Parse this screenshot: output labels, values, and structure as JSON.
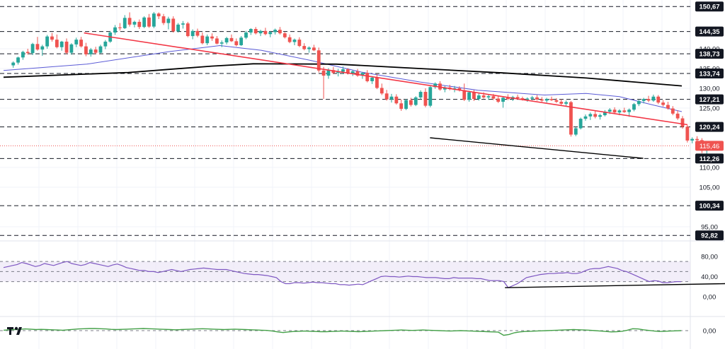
{
  "chart_data": {
    "type": "candlestick",
    "title": "",
    "xlabel": "",
    "ylabel": "",
    "ylim": [
      87,
      154
    ],
    "price_ticks": [
      "140,00",
      "135,00",
      "130,00",
      "125,00",
      "110,00",
      "105,00",
      "95,00"
    ],
    "key_levels": [
      {
        "label": "150,67",
        "value": 150.67
      },
      {
        "label": "144,35",
        "value": 144.35
      },
      {
        "label": "138,73",
        "value": 138.73
      },
      {
        "label": "133,74",
        "value": 133.74
      },
      {
        "label": "127,21",
        "value": 127.21
      },
      {
        "label": "120,24",
        "value": 120.24
      },
      {
        "label": "112,26",
        "value": 112.26
      },
      {
        "label": "100,34",
        "value": 100.34
      },
      {
        "label": "92,82",
        "value": 92.82
      }
    ],
    "last_price": {
      "label": "115,46",
      "value": 115.46
    },
    "colors": {
      "up": "#26a69a",
      "down": "#ef5350",
      "trend": "#f23645",
      "ma_short": "#5b5bd6",
      "ma_long": "#000000",
      "rsi": "#7e57c2",
      "macd": "#43a047",
      "rsi_band": "#ede7f6"
    },
    "n_bars": 170,
    "candles": [
      [
        135.8,
        136.8,
        135.2,
        136.5
      ],
      [
        136.5,
        138.0,
        136.0,
        137.8
      ],
      [
        137.8,
        139.5,
        137.2,
        139.2
      ],
      [
        139.2,
        140.0,
        138.5,
        138.9
      ],
      [
        138.9,
        141.5,
        138.4,
        141.2
      ],
      [
        141.2,
        143.0,
        139.5,
        139.8
      ],
      [
        139.8,
        141.0,
        138.2,
        140.6
      ],
      [
        140.6,
        143.5,
        140.0,
        143.1
      ],
      [
        143.1,
        144.0,
        141.8,
        142.3
      ],
      [
        142.3,
        143.6,
        140.1,
        140.4
      ],
      [
        140.4,
        142.0,
        139.5,
        141.8
      ],
      [
        141.8,
        142.6,
        138.6,
        139.0
      ],
      [
        139.0,
        141.4,
        138.5,
        141.1
      ],
      [
        141.1,
        142.8,
        140.4,
        142.3
      ],
      [
        142.3,
        143.0,
        140.3,
        140.6
      ],
      [
        140.6,
        141.5,
        138.1,
        138.6
      ],
      [
        138.6,
        140.2,
        138.0,
        139.8
      ],
      [
        139.8,
        140.5,
        138.6,
        139.0
      ],
      [
        139.0,
        141.0,
        138.8,
        140.6
      ],
      [
        140.6,
        142.2,
        139.9,
        141.8
      ],
      [
        141.8,
        144.5,
        141.5,
        144.1
      ],
      [
        144.1,
        146.0,
        143.5,
        145.4
      ],
      [
        145.4,
        146.5,
        144.6,
        145.2
      ],
      [
        145.2,
        148.5,
        145.0,
        147.8
      ],
      [
        147.8,
        149.2,
        145.6,
        146.1
      ],
      [
        146.1,
        147.1,
        145.4,
        146.8
      ],
      [
        146.8,
        147.4,
        145.0,
        145.5
      ],
      [
        145.5,
        148.2,
        145.2,
        147.9
      ],
      [
        147.9,
        148.8,
        145.3,
        145.6
      ],
      [
        145.6,
        149.3,
        145.2,
        148.9
      ],
      [
        148.9,
        149.2,
        147.5,
        148.2
      ],
      [
        148.2,
        148.8,
        146.0,
        146.5
      ],
      [
        146.5,
        148.1,
        144.9,
        147.6
      ],
      [
        147.6,
        148.2,
        144.1,
        144.4
      ],
      [
        144.4,
        146.5,
        144.1,
        146.1
      ],
      [
        146.1,
        147.0,
        145.1,
        146.4
      ],
      [
        146.4,
        146.8,
        142.9,
        143.2
      ],
      [
        143.2,
        144.9,
        142.4,
        144.5
      ],
      [
        144.5,
        145.1,
        142.9,
        143.3
      ],
      [
        143.3,
        144.1,
        141.1,
        141.4
      ],
      [
        141.4,
        143.6,
        140.9,
        143.1
      ],
      [
        143.1,
        143.9,
        142.0,
        142.6
      ],
      [
        142.6,
        143.2,
        141.1,
        141.3
      ],
      [
        141.3,
        142.1,
        140.4,
        141.6
      ],
      [
        141.6,
        143.0,
        141.1,
        142.7
      ],
      [
        142.7,
        143.6,
        141.7,
        141.9
      ],
      [
        141.9,
        142.6,
        140.6,
        140.9
      ],
      [
        140.9,
        143.2,
        140.7,
        142.8
      ],
      [
        142.8,
        144.5,
        142.4,
        144.1
      ],
      [
        144.1,
        145.2,
        143.5,
        145.0
      ],
      [
        145.0,
        145.5,
        143.6,
        143.9
      ],
      [
        143.9,
        144.8,
        143.2,
        144.5
      ],
      [
        144.5,
        145.3,
        143.4,
        143.7
      ],
      [
        143.7,
        144.5,
        142.9,
        144.2
      ],
      [
        144.2,
        145.1,
        143.6,
        144.8
      ],
      [
        144.8,
        145.5,
        143.6,
        143.9
      ],
      [
        143.9,
        144.2,
        142.6,
        142.9
      ],
      [
        142.9,
        143.6,
        141.4,
        141.7
      ],
      [
        141.7,
        142.6,
        140.9,
        142.3
      ],
      [
        142.3,
        142.9,
        140.4,
        140.7
      ],
      [
        140.7,
        141.4,
        139.6,
        139.9
      ],
      [
        139.9,
        140.6,
        139.0,
        140.3
      ],
      [
        140.3,
        141.0,
        139.4,
        139.6
      ],
      [
        139.6,
        140.3,
        134.0,
        134.5
      ],
      [
        134.5,
        135.4,
        127.3,
        133.2
      ],
      [
        133.2,
        135.1,
        132.4,
        134.6
      ],
      [
        134.6,
        135.4,
        133.6,
        133.9
      ],
      [
        133.9,
        134.9,
        133.0,
        134.2
      ],
      [
        134.2,
        135.5,
        133.6,
        134.8
      ],
      [
        134.8,
        135.1,
        133.5,
        133.8
      ],
      [
        133.8,
        134.6,
        133.1,
        134.3
      ],
      [
        134.3,
        134.9,
        132.9,
        133.2
      ],
      [
        133.2,
        134.1,
        132.4,
        133.9
      ],
      [
        133.9,
        134.6,
        131.5,
        131.8
      ],
      [
        131.8,
        133.1,
        131.1,
        132.7
      ],
      [
        132.7,
        133.6,
        129.8,
        130.1
      ],
      [
        130.1,
        131.2,
        128.3,
        128.7
      ],
      [
        128.7,
        129.6,
        126.9,
        127.2
      ],
      [
        127.2,
        128.6,
        126.4,
        127.9
      ],
      [
        127.9,
        128.5,
        125.9,
        126.2
      ],
      [
        126.2,
        127.2,
        124.3,
        124.8
      ],
      [
        124.8,
        127.3,
        124.5,
        127.0
      ],
      [
        127.0,
        127.6,
        125.4,
        125.8
      ],
      [
        125.8,
        128.0,
        125.5,
        127.7
      ],
      [
        127.7,
        129.5,
        127.2,
        129.1
      ],
      [
        129.1,
        130.0,
        125.2,
        125.6
      ],
      [
        125.6,
        130.8,
        125.2,
        130.3
      ],
      [
        130.3,
        131.5,
        129.9,
        131.2
      ],
      [
        131.2,
        131.8,
        129.4,
        129.7
      ],
      [
        129.7,
        130.6,
        129.0,
        130.2
      ],
      [
        130.2,
        130.9,
        129.5,
        129.8
      ],
      [
        129.8,
        130.6,
        129.0,
        130.0
      ],
      [
        130.0,
        130.5,
        129.2,
        129.5
      ],
      [
        129.5,
        131.2,
        126.8,
        127.1
      ],
      [
        127.1,
        129.4,
        126.6,
        129.0
      ],
      [
        129.0,
        129.6,
        126.8,
        127.3
      ],
      [
        127.3,
        128.7,
        126.9,
        128.2
      ],
      [
        128.2,
        129.0,
        127.4,
        127.7
      ],
      [
        127.7,
        128.4,
        127.1,
        128.0
      ],
      [
        128.0,
        128.6,
        127.0,
        127.4
      ],
      [
        127.4,
        128.1,
        126.3,
        126.6
      ],
      [
        126.6,
        127.9,
        125.1,
        127.6
      ],
      [
        127.6,
        128.5,
        127.0,
        127.3
      ],
      [
        127.3,
        128.1,
        126.8,
        127.8
      ],
      [
        127.8,
        128.4,
        127.2,
        127.5
      ],
      [
        127.5,
        127.9,
        126.9,
        127.1
      ],
      [
        127.1,
        127.7,
        126.6,
        127.4
      ],
      [
        127.4,
        128.1,
        127.0,
        127.7
      ],
      [
        127.7,
        128.3,
        126.9,
        127.2
      ],
      [
        127.2,
        127.8,
        126.6,
        126.9
      ],
      [
        126.9,
        127.6,
        126.4,
        127.3
      ],
      [
        127.3,
        127.9,
        126.8,
        127.0
      ],
      [
        127.0,
        127.5,
        126.3,
        126.6
      ],
      [
        126.6,
        127.2,
        125.8,
        126.1
      ],
      [
        126.1,
        126.9,
        125.6,
        126.5
      ],
      [
        126.5,
        126.8,
        117.8,
        118.3
      ],
      [
        118.3,
        120.2,
        117.9,
        119.9
      ],
      [
        119.9,
        122.6,
        119.6,
        122.3
      ],
      [
        122.3,
        123.4,
        121.8,
        122.9
      ],
      [
        122.9,
        123.9,
        122.0,
        123.5
      ],
      [
        123.5,
        124.3,
        122.4,
        122.8
      ],
      [
        122.8,
        123.6,
        122.1,
        123.2
      ],
      [
        123.2,
        124.5,
        122.9,
        124.1
      ],
      [
        124.1,
        125.0,
        123.5,
        124.6
      ],
      [
        124.6,
        125.2,
        123.6,
        123.9
      ],
      [
        123.9,
        124.7,
        123.2,
        124.4
      ],
      [
        124.4,
        125.1,
        123.8,
        124.0
      ],
      [
        124.0,
        124.9,
        122.8,
        124.6
      ],
      [
        124.6,
        126.3,
        124.2,
        126.0
      ],
      [
        126.0,
        127.1,
        125.5,
        126.8
      ],
      [
        126.8,
        127.6,
        126.2,
        127.3
      ],
      [
        127.3,
        128.1,
        126.5,
        126.9
      ],
      [
        126.9,
        128.4,
        126.6,
        127.9
      ],
      [
        127.9,
        128.3,
        126.0,
        126.4
      ],
      [
        126.4,
        127.0,
        125.4,
        125.8
      ],
      [
        125.8,
        126.6,
        124.6,
        124.9
      ],
      [
        124.9,
        125.5,
        123.2,
        123.6
      ],
      [
        123.6,
        124.4,
        122.0,
        122.4
      ],
      [
        122.4,
        123.0,
        119.8,
        120.3
      ],
      [
        120.3,
        120.7,
        116.3,
        116.8
      ],
      [
        116.8,
        117.6,
        116.1,
        117.2
      ],
      [
        117.2,
        117.9,
        116.4,
        116.9
      ],
      [
        116.9,
        117.4,
        113.6,
        114.2
      ],
      [
        114.2,
        116.4,
        111.9,
        115.46
      ]
    ],
    "candle_start_index": 2,
    "candle_spacing": 6.85,
    "ma_short": [
      [
        0,
        134.5
      ],
      [
        20,
        136.1
      ],
      [
        40,
        139.3
      ],
      [
        52,
        140.8
      ],
      [
        62,
        139.6
      ],
      [
        74,
        137.0
      ],
      [
        86,
        134.1
      ],
      [
        100,
        131.6
      ],
      [
        114,
        129.5
      ],
      [
        130,
        128.3
      ],
      [
        140,
        128.7
      ],
      [
        148,
        127.9
      ],
      [
        156,
        125.8
      ],
      [
        163,
        124.1
      ]
    ],
    "ma_long": [
      [
        0,
        132.8
      ],
      [
        30,
        134.0
      ],
      [
        50,
        135.6
      ],
      [
        60,
        136.2
      ],
      [
        80,
        136.1
      ],
      [
        100,
        135.0
      ],
      [
        120,
        133.9
      ],
      [
        140,
        132.6
      ],
      [
        163,
        130.6
      ]
    ],
    "trendline_down": [
      [
        20,
        144.0
      ],
      [
        170,
        120.8
      ]
    ],
    "support_line": [
      [
        106,
        117.5
      ],
      [
        159,
        112.3
      ]
    ],
    "rsi_ticks": [
      "80,00",
      "40,00",
      "0,00"
    ],
    "rsi_band": [
      30,
      70
    ],
    "rsi": [
      58,
      60,
      62,
      64,
      68,
      66,
      63,
      60,
      62,
      66,
      64,
      62,
      65,
      68,
      70,
      66,
      64,
      62,
      64,
      68,
      66,
      64,
      62,
      60,
      63,
      65,
      62,
      58,
      56,
      54,
      52,
      52,
      50,
      50,
      48,
      50,
      52,
      54,
      52,
      50,
      52,
      54,
      55,
      56,
      57,
      56,
      55,
      54,
      54,
      54,
      52,
      50,
      48,
      46,
      45,
      44,
      44,
      43,
      42,
      40,
      38,
      30,
      26,
      26,
      28,
      28,
      27,
      28,
      29,
      28,
      28,
      27,
      26,
      26,
      24,
      24,
      23,
      24,
      25,
      24,
      28,
      32,
      36,
      40,
      41,
      40,
      40,
      39,
      40,
      41,
      40,
      40,
      39,
      38,
      38,
      38,
      37,
      36,
      36,
      38,
      37,
      37,
      37,
      37,
      36,
      36,
      34,
      32,
      32,
      32,
      30,
      18,
      22,
      26,
      32,
      38,
      40,
      42,
      44,
      45,
      46,
      46,
      47,
      47,
      48,
      46,
      46,
      48,
      52,
      55,
      56,
      56,
      58,
      60,
      58,
      56,
      52,
      50,
      46,
      42,
      38,
      34,
      30,
      32,
      31,
      28,
      28,
      29,
      30,
      30
    ],
    "rsi_support": [
      [
        111,
        18
      ],
      [
        160,
        26
      ]
    ],
    "macd_tick": "0,00",
    "macd": [
      0.2,
      0.4,
      0.5,
      0.6,
      0.8,
      0.7,
      0.5,
      0.6,
      0.5,
      0.4,
      0.3,
      0.2,
      0.4,
      0.6,
      0.8,
      0.9,
      1.0,
      1.0,
      0.9,
      0.8,
      0.6,
      0.5,
      0.6,
      0.7,
      0.8,
      0.9,
      1.0,
      0.9,
      0.8,
      0.7,
      0.6,
      0.5,
      0.4,
      0.5,
      0.6,
      0.7,
      0.8,
      0.9,
      0.8,
      0.7,
      0.6,
      0.5,
      0.6,
      0.7,
      0.6,
      0.5,
      0.4,
      0.3,
      0.2,
      0.1,
      -0.2,
      -0.6,
      -0.9,
      -0.6,
      -0.4,
      -0.3,
      -0.2,
      -0.3,
      -0.4,
      -0.5,
      -0.5,
      -0.4,
      -0.3,
      -0.2,
      -0.3,
      -0.4,
      -0.5,
      -0.4,
      -0.3,
      -0.2,
      -0.1,
      0.0,
      0.1,
      0.2,
      0.3,
      0.2,
      0.1,
      0.2,
      0.3,
      0.2,
      0.1,
      0.0,
      -0.1,
      -0.2,
      -0.1,
      0.0,
      -0.1,
      -0.2,
      -0.3,
      -0.4,
      -0.5,
      -0.6,
      -0.7,
      -2.2,
      -1.8,
      -1.0,
      -0.6,
      -0.4,
      -0.3,
      -0.2,
      -0.1,
      0.0,
      0.1,
      0.2,
      0.3,
      0.4,
      0.5,
      0.4,
      0.3,
      0.2,
      0.0,
      -0.2,
      -0.4,
      -0.6,
      -0.5,
      -0.3,
      0.2,
      0.9,
      0.8,
      0.4,
      0.1,
      -0.2,
      -0.4,
      -0.3,
      -0.2,
      -0.1,
      0.0
    ]
  }
}
